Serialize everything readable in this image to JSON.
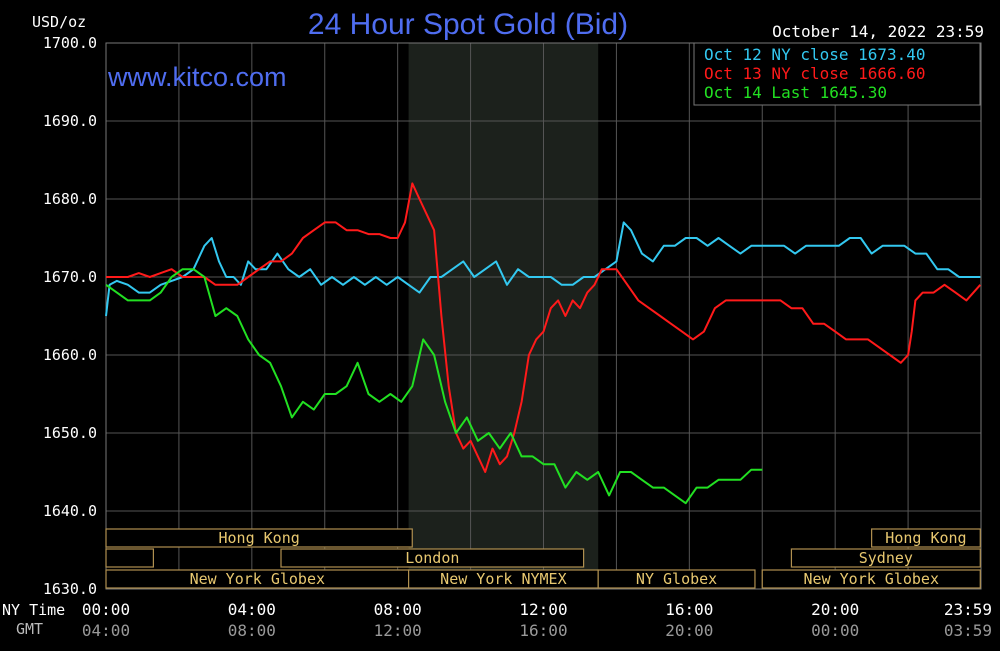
{
  "chart_data": {
    "type": "line",
    "title": "24 Hour Spot Gold (Bid)",
    "unit_label": "USD/oz",
    "watermark": "www.kitco.com",
    "timestamp": "October 14, 2022 23:59",
    "ylim": [
      1630,
      1700
    ],
    "y_ticks": [
      "1700.0",
      "1690.0",
      "1680.0",
      "1670.0",
      "1660.0",
      "1650.0",
      "1640.0",
      "1630.0"
    ],
    "x_axis": {
      "ny_label": "NY Time",
      "gmt_label": "GMT",
      "hours": [
        0,
        4,
        8,
        12,
        16,
        20,
        23.98
      ],
      "ny_ticks": [
        "00:00",
        "04:00",
        "08:00",
        "12:00",
        "16:00",
        "20:00",
        "23:59"
      ],
      "gmt_ticks": [
        "04:00",
        "08:00",
        "12:00",
        "16:00",
        "20:00",
        "00:00",
        "03:59"
      ]
    },
    "shaded_session": [
      8.3,
      13.5
    ],
    "colors": {
      "background": "#000000",
      "grid": "#555555",
      "title": "#4f6df0",
      "oct12": "#33c8f0",
      "oct13": "#ff1a1a",
      "oct14": "#22e022",
      "session_text": "#e8c870",
      "session_border": "#b09050"
    },
    "legend": {
      "placement": "top-right",
      "entries": [
        {
          "label": "Oct 12 NY close 1673.40",
          "series": "oct12"
        },
        {
          "label": "Oct 13 NY close 1666.60",
          "series": "oct13"
        },
        {
          "label": "Oct 14 Last 1645.30",
          "series": "oct14"
        }
      ]
    },
    "series": [
      {
        "key": "oct12",
        "x": [
          0,
          0.1,
          0.3,
          0.6,
          0.9,
          1.2,
          1.5,
          1.8,
          2.1,
          2.4,
          2.7,
          2.9,
          3.1,
          3.3,
          3.5,
          3.7,
          3.9,
          4.1,
          4.4,
          4.7,
          5.0,
          5.3,
          5.6,
          5.9,
          6.2,
          6.5,
          6.8,
          7.1,
          7.4,
          7.7,
          8.0,
          8.3,
          8.6,
          8.9,
          9.2,
          9.5,
          9.8,
          10.1,
          10.4,
          10.7,
          11.0,
          11.3,
          11.6,
          11.9,
          12.2,
          12.5,
          12.8,
          13.1,
          13.4,
          13.7,
          14.0,
          14.2,
          14.4,
          14.7,
          15.0,
          15.3,
          15.6,
          15.9,
          16.2,
          16.5,
          16.8,
          17.1,
          17.4,
          17.7,
          18.0,
          18.3,
          18.6,
          18.9,
          19.2,
          19.5,
          19.8,
          20.1,
          20.4,
          20.7,
          21.0,
          21.3,
          21.6,
          21.9,
          22.2,
          22.5,
          22.8,
          23.1,
          23.4,
          23.7,
          23.98
        ],
        "values": [
          1665,
          1669,
          1669.5,
          1669,
          1668,
          1668,
          1669,
          1669.5,
          1670,
          1671,
          1674,
          1675,
          1672,
          1670,
          1670,
          1669,
          1672,
          1671,
          1671,
          1673,
          1671,
          1670,
          1671,
          1669,
          1670,
          1669,
          1670,
          1669,
          1670,
          1669,
          1670,
          1669,
          1668,
          1670,
          1670,
          1671,
          1672,
          1670,
          1671,
          1672,
          1669,
          1671,
          1670,
          1670,
          1670,
          1669,
          1669,
          1670,
          1670,
          1671,
          1672,
          1677,
          1676,
          1673,
          1672,
          1674,
          1674,
          1675,
          1675,
          1674,
          1675,
          1674,
          1673,
          1674,
          1674,
          1674,
          1674,
          1673,
          1674,
          1674,
          1674,
          1674,
          1675,
          1675,
          1673,
          1674,
          1674,
          1674,
          1673,
          1673,
          1671,
          1671,
          1670,
          1670,
          1670
        ]
      },
      {
        "key": "oct13",
        "x": [
          0,
          0.3,
          0.6,
          0.9,
          1.2,
          1.5,
          1.8,
          2.1,
          2.4,
          2.7,
          3.0,
          3.3,
          3.6,
          3.9,
          4.2,
          4.5,
          4.8,
          5.1,
          5.4,
          5.7,
          6.0,
          6.3,
          6.6,
          6.9,
          7.2,
          7.5,
          7.8,
          8.0,
          8.2,
          8.4,
          8.6,
          8.8,
          9.0,
          9.2,
          9.4,
          9.6,
          9.8,
          10.0,
          10.2,
          10.4,
          10.6,
          10.8,
          11.0,
          11.2,
          11.4,
          11.6,
          11.8,
          12.0,
          12.2,
          12.4,
          12.6,
          12.8,
          13.0,
          13.2,
          13.4,
          13.6,
          13.8,
          14.0,
          14.3,
          14.6,
          14.9,
          15.2,
          15.5,
          15.8,
          16.1,
          16.4,
          16.7,
          17.0,
          17.3,
          17.6,
          17.9,
          18.2,
          18.5,
          18.8,
          19.1,
          19.4,
          19.7,
          20.0,
          20.3,
          20.6,
          20.9,
          21.2,
          21.5,
          21.8,
          22.0,
          22.1,
          22.2,
          22.4,
          22.7,
          23.0,
          23.3,
          23.6,
          23.98
        ],
        "values": [
          1670,
          1670,
          1670,
          1670.5,
          1670,
          1670.5,
          1671,
          1670,
          1670,
          1670,
          1669,
          1669,
          1669,
          1670,
          1671,
          1672,
          1672,
          1673,
          1675,
          1676,
          1677,
          1677,
          1676,
          1676,
          1675.5,
          1675.5,
          1675,
          1675,
          1677,
          1682,
          1680,
          1678,
          1676,
          1665,
          1656,
          1650,
          1648,
          1649,
          1647,
          1645,
          1648,
          1646,
          1647,
          1650,
          1654,
          1660,
          1662,
          1663,
          1666,
          1667,
          1665,
          1667,
          1666,
          1668,
          1669,
          1671,
          1671,
          1671,
          1669,
          1667,
          1666,
          1665,
          1664,
          1663,
          1662,
          1663,
          1666,
          1667,
          1667,
          1667,
          1667,
          1667,
          1667,
          1666,
          1666,
          1664,
          1664,
          1663,
          1662,
          1662,
          1662,
          1661,
          1660,
          1659,
          1660,
          1663,
          1667,
          1668,
          1668,
          1669,
          1668,
          1667,
          1669
        ]
      },
      {
        "key": "oct14",
        "x": [
          0,
          0.3,
          0.6,
          0.9,
          1.2,
          1.5,
          1.8,
          2.1,
          2.4,
          2.7,
          3.0,
          3.3,
          3.6,
          3.9,
          4.2,
          4.5,
          4.8,
          5.1,
          5.4,
          5.7,
          6.0,
          6.3,
          6.6,
          6.9,
          7.2,
          7.5,
          7.8,
          8.1,
          8.4,
          8.7,
          9.0,
          9.3,
          9.6,
          9.9,
          10.2,
          10.5,
          10.8,
          11.1,
          11.4,
          11.7,
          12.0,
          12.3,
          12.6,
          12.9,
          13.2,
          13.5,
          13.8,
          14.1,
          14.4,
          14.7,
          15.0,
          15.3,
          15.6,
          15.9,
          16.2,
          16.5,
          16.8,
          17.1,
          17.4,
          17.7,
          18.0
        ],
        "values": [
          1669,
          1668,
          1667,
          1667,
          1667,
          1668,
          1670,
          1671,
          1671,
          1670,
          1665,
          1666,
          1665,
          1662,
          1660,
          1659,
          1656,
          1652,
          1654,
          1653,
          1655,
          1655,
          1656,
          1659,
          1655,
          1654,
          1655,
          1654,
          1656,
          1662,
          1660,
          1654,
          1650,
          1652,
          1649,
          1650,
          1648,
          1650,
          1647,
          1647,
          1646,
          1646,
          1643,
          1645,
          1644,
          1645,
          1642,
          1645,
          1645,
          1644,
          1643,
          1643,
          1642,
          1641,
          1643,
          1643,
          1644,
          1644,
          1644,
          1645.3,
          1645.3
        ]
      }
    ],
    "sessions": {
      "row1": [
        {
          "label": "Hong Kong",
          "start": 0,
          "end": 8.4
        },
        {
          "label": "Hong Kong",
          "start": 21.0,
          "end": 23.98
        }
      ],
      "row2": [
        {
          "label": "",
          "start": 0,
          "end": 1.3
        },
        {
          "label": "London",
          "start": 4.8,
          "end": 13.1
        },
        {
          "label": "Sydney",
          "start": 18.8,
          "end": 23.98
        }
      ],
      "row3": [
        {
          "label": "New York Globex",
          "start": 0,
          "end": 8.3
        },
        {
          "label": "New York NYMEX",
          "start": 8.3,
          "end": 13.5
        },
        {
          "label": "NY Globex",
          "start": 13.5,
          "end": 17.8
        },
        {
          "label": "New York Globex",
          "start": 18.0,
          "end": 23.98
        }
      ]
    }
  }
}
